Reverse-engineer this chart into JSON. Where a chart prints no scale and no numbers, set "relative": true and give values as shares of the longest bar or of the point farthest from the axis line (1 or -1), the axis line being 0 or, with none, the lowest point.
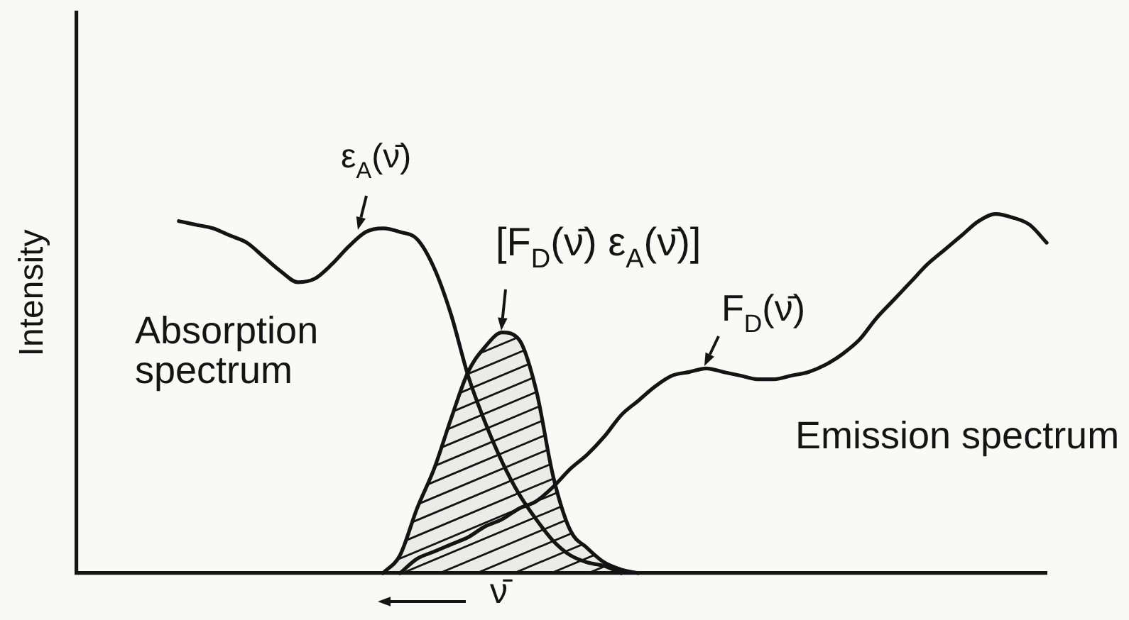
{
  "chart_data": {
    "type": "line",
    "relative": true,
    "xlabel": "ν̄",
    "ylabel": "Intensity",
    "marker": "none",
    "tick_labels": false,
    "categories": [
      null,
      null,
      null,
      null,
      null,
      null,
      null,
      null,
      null,
      null,
      null,
      null,
      null,
      null,
      null,
      null,
      null,
      null,
      null,
      null,
      null,
      null,
      null,
      null,
      null,
      null,
      null,
      null,
      null,
      null,
      null,
      null,
      null,
      null,
      null,
      null,
      null,
      null,
      null,
      null,
      null,
      null,
      null,
      null,
      null,
      null,
      null,
      null,
      null,
      null,
      null,
      null,
      null,
      null,
      null,
      null,
      null,
      null
    ],
    "series": [
      {
        "name": "Absorption spectrum",
        "color": "#141414",
        "values": [
          null,
          null,
          null,
          null,
          null,
          null,
          0.98,
          0.97,
          0.96,
          0.94,
          0.92,
          0.88,
          0.84,
          0.81,
          0.82,
          0.86,
          0.91,
          0.95,
          0.96,
          0.95,
          0.93,
          0.85,
          0.72,
          0.55,
          0.42,
          0.31,
          0.22,
          0.15,
          0.09,
          0.05,
          0.03,
          0.02,
          0,
          null,
          null,
          null,
          null,
          null,
          null,
          null,
          null,
          null,
          null,
          null,
          null,
          null,
          null,
          null,
          null,
          null,
          null,
          null,
          null,
          null,
          null,
          null,
          null,
          null
        ]
      },
      {
        "name": "Emission spectrum",
        "color": "#141414",
        "values": [
          null,
          null,
          null,
          null,
          null,
          null,
          null,
          null,
          null,
          null,
          null,
          null,
          null,
          null,
          null,
          null,
          null,
          null,
          null,
          0,
          0.04,
          0.06,
          0.08,
          0.1,
          0.13,
          0.15,
          0.18,
          0.2,
          0.24,
          0.29,
          0.33,
          0.38,
          0.44,
          0.48,
          0.52,
          0.55,
          0.56,
          0.57,
          0.56,
          0.55,
          0.54,
          0.54,
          0.55,
          0.56,
          0.58,
          0.61,
          0.65,
          0.71,
          0.76,
          0.81,
          0.86,
          0.9,
          0.94,
          0.98,
          1,
          0.99,
          0.97,
          0.92
        ]
      },
      {
        "type": "area",
        "color": "#141414",
        "values": [
          null,
          null,
          null,
          null,
          null,
          null,
          null,
          null,
          null,
          null,
          null,
          null,
          null,
          null,
          null,
          null,
          null,
          null,
          0,
          0.05,
          0.18,
          0.29,
          0.43,
          0.56,
          0.63,
          0.67,
          0.65,
          0.51,
          0.27,
          0.12,
          0.07,
          0.03,
          0.01,
          0,
          null,
          null,
          null,
          null,
          null,
          null,
          null,
          null,
          null,
          null,
          null,
          null,
          null,
          null,
          null,
          null,
          null,
          null,
          null,
          null,
          null,
          null,
          null,
          null
        ]
      }
    ],
    "annotations": [
      "ε$_{A}$(ν̄)",
      "[F$_{D}$(ν̄) ε$_{A}$(ν̄)]",
      "F$_{D}$(ν̄)"
    ]
  }
}
